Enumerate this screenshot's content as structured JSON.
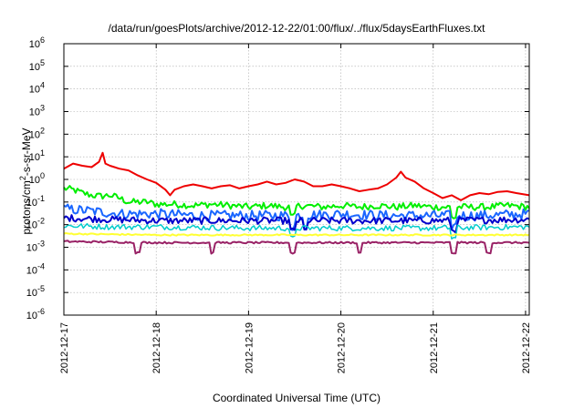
{
  "chart_data": {
    "type": "line",
    "title": "/data/run/goesPlots/archive/2012-12-22/01:00/flux/../flux/5daysEarthFluxes.txt",
    "xlabel": "Coordinated Universal Time (UTC)",
    "ylabel": {
      "pre": "protons/cm",
      "sup": "2",
      "post": "-s-sr-MeV"
    },
    "yscale": "log",
    "ylim_exp": [
      -6,
      6
    ],
    "y_ticks": [
      {
        "base": "10",
        "exp": "-6"
      },
      {
        "base": "10",
        "exp": "-5"
      },
      {
        "base": "10",
        "exp": "-4"
      },
      {
        "base": "10",
        "exp": "-3"
      },
      {
        "base": "10",
        "exp": "-2"
      },
      {
        "base": "10",
        "exp": "-1"
      },
      {
        "base": "10",
        "exp": "0"
      },
      {
        "base": "10",
        "exp": "1"
      },
      {
        "base": "10",
        "exp": "2"
      },
      {
        "base": "10",
        "exp": "3"
      },
      {
        "base": "10",
        "exp": "4"
      },
      {
        "base": "10",
        "exp": "5"
      },
      {
        "base": "10",
        "exp": "6"
      }
    ],
    "x_ticks": [
      "2012-12-17",
      "2012-12-18",
      "2012-12-19",
      "2012-12-20",
      "2012-12-21",
      "2012-12-22"
    ],
    "xlim_days": [
      0,
      5.04
    ],
    "grid": true,
    "series": [
      {
        "color": "#ee0000",
        "width": 2.0,
        "x_days": [
          0,
          0.1,
          0.2,
          0.3,
          0.38,
          0.42,
          0.45,
          0.5,
          0.6,
          0.7,
          0.8,
          0.9,
          1.0,
          1.1,
          1.15,
          1.2,
          1.3,
          1.4,
          1.5,
          1.6,
          1.7,
          1.8,
          1.9,
          2.0,
          2.1,
          2.2,
          2.3,
          2.4,
          2.5,
          2.6,
          2.7,
          2.8,
          2.9,
          3.0,
          3.1,
          3.2,
          3.3,
          3.4,
          3.5,
          3.6,
          3.65,
          3.7,
          3.8,
          3.9,
          4.0,
          4.1,
          4.2,
          4.3,
          4.4,
          4.5,
          4.6,
          4.7,
          4.8,
          4.9,
          5.04
        ],
        "y": [
          3,
          5,
          4,
          3.5,
          6,
          15,
          5,
          4,
          3,
          2.5,
          1.5,
          1,
          0.7,
          0.35,
          0.2,
          0.35,
          0.5,
          0.6,
          0.5,
          0.4,
          0.5,
          0.55,
          0.4,
          0.5,
          0.6,
          0.8,
          0.6,
          0.7,
          1.0,
          0.8,
          0.5,
          0.5,
          0.6,
          0.5,
          0.4,
          0.3,
          0.35,
          0.4,
          0.6,
          1.2,
          2.2,
          1.2,
          0.8,
          0.4,
          0.25,
          0.15,
          0.2,
          0.12,
          0.2,
          0.25,
          0.22,
          0.28,
          0.3,
          0.25,
          0.2
        ]
      },
      {
        "color": "#00ee00",
        "width": 2.0,
        "x_days": [
          0,
          0.1,
          0.2,
          0.3,
          0.4,
          0.5,
          0.6,
          0.7,
          0.8,
          0.9,
          1.0,
          1.2,
          1.4,
          1.6,
          1.8,
          2.0,
          2.2,
          2.4,
          2.6,
          2.8,
          3.0,
          3.2,
          3.4,
          3.6,
          3.8,
          4.0,
          4.2,
          4.4,
          4.6,
          4.8,
          5.04
        ],
        "y": [
          0.4,
          0.35,
          0.25,
          0.2,
          0.18,
          0.2,
          0.15,
          0.1,
          0.1,
          0.1,
          0.08,
          0.08,
          0.07,
          0.08,
          0.07,
          0.06,
          0.07,
          0.06,
          0.07,
          0.06,
          0.07,
          0.06,
          0.07,
          0.06,
          0.07,
          0.06,
          0.06,
          0.06,
          0.06,
          0.07,
          0.06
        ],
        "jitter": 0.3,
        "spikes": [
          2.48,
          4.22
        ]
      },
      {
        "color": "#1a66ff",
        "width": 2.0,
        "x_days": [
          0,
          0.3,
          0.6,
          1.0,
          1.5,
          2.0,
          2.5,
          3.0,
          3.5,
          4.0,
          4.5,
          5.04
        ],
        "y": [
          0.05,
          0.04,
          0.03,
          0.03,
          0.025,
          0.025,
          0.025,
          0.03,
          0.025,
          0.025,
          0.025,
          0.03
        ],
        "jitter": 0.45,
        "spikes": [
          2.48,
          2.62,
          4.22
        ]
      },
      {
        "color": "#0000cc",
        "width": 2.0,
        "x_days": [
          0,
          0.5,
          1.0,
          2.0,
          3.0,
          4.0,
          5.04
        ],
        "y": [
          0.02,
          0.017,
          0.015,
          0.015,
          0.015,
          0.015,
          0.017
        ],
        "jitter": 0.3,
        "spikes": [
          2.48,
          2.62,
          4.22
        ]
      },
      {
        "color": "#00cccc",
        "width": 1.5,
        "x_days": [
          0,
          0.5,
          1.0,
          2.0,
          3.0,
          4.0,
          5.04
        ],
        "y": [
          0.009,
          0.008,
          0.008,
          0.007,
          0.007,
          0.007,
          0.008
        ],
        "jitter": 0.25,
        "spikes": [
          2.48,
          4.22
        ]
      },
      {
        "color": "#ffff33",
        "width": 2.0,
        "x_days": [
          0,
          1.0,
          2.0,
          3.0,
          4.0,
          5.04
        ],
        "y": [
          0.004,
          0.0035,
          0.0035,
          0.0035,
          0.0035,
          0.0035
        ],
        "jitter": 0.06,
        "spikes": []
      },
      {
        "color": "#992266",
        "width": 2.0,
        "x_days": [
          0,
          1.0,
          2.0,
          3.0,
          4.0,
          5.04
        ],
        "y": [
          0.0018,
          0.0016,
          0.0016,
          0.0016,
          0.0016,
          0.0016
        ],
        "jitter": 0.08,
        "spikes": [
          0.8,
          1.6,
          2.48,
          3.2,
          4.22,
          4.6
        ]
      }
    ]
  }
}
